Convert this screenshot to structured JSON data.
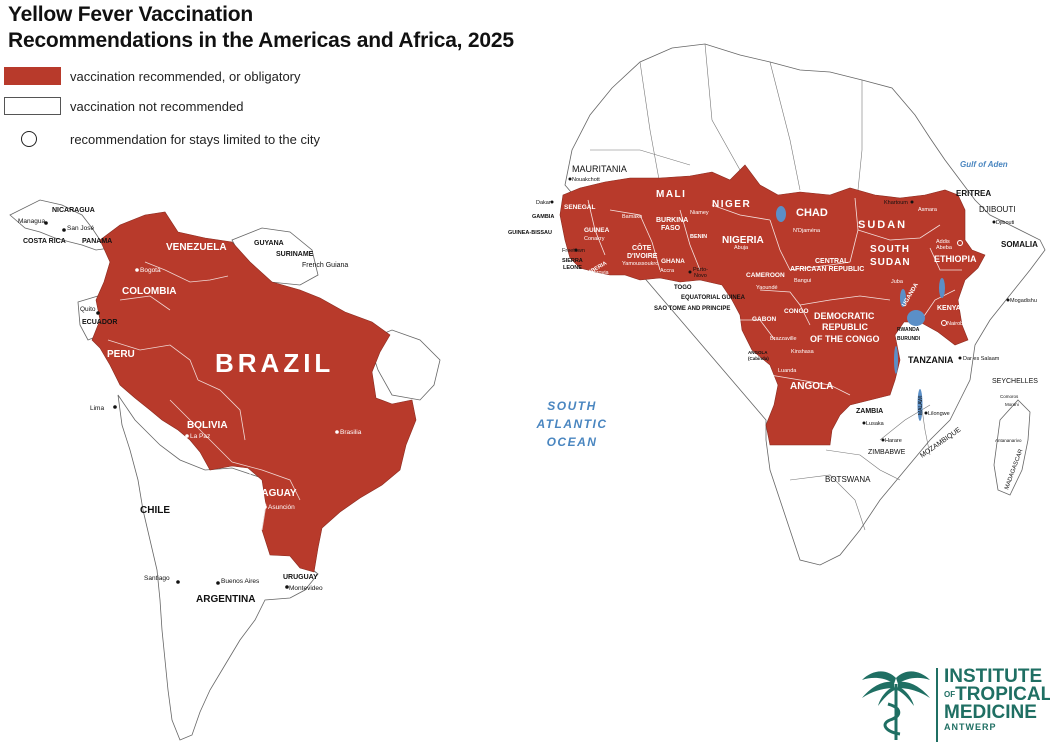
{
  "title": {
    "line1": "Yellow Fever Vaccination",
    "line2": "Recommendations in the Americas and Africa, 2025"
  },
  "legend": {
    "recommended": {
      "label": "vaccination recommended,  or obligatory",
      "color": "#b83a2b"
    },
    "not_recommended": {
      "label": "vaccination not recommended",
      "color": "#ffffff"
    },
    "city_only": {
      "label": "recommendation for stays limited to the city"
    }
  },
  "colors": {
    "endemic": "#b83a2b",
    "border": "#666666",
    "water": "#5b8fc7",
    "ocean_label": "#4a86c0",
    "logo": "#1f6f63"
  },
  "americas": {
    "countries_large": {
      "brazil": "BRAZIL"
    },
    "countries_red": {
      "venezuela": "VENEZUELA",
      "colombia": "COLOMBIA",
      "peru": "PERU",
      "bolivia": "BOLIVIA",
      "paraguay": "PARAGUAY"
    },
    "countries_other": {
      "nicaragua": "NICARAGUA",
      "costa_rica": "COSTA RICA",
      "panama": "PANAMA",
      "guyana": "GUYANA",
      "suriname": "SURINAME",
      "french_guiana": "French Guiana",
      "ecuador": "ECUADOR",
      "chile": "CHILE",
      "argentina": "ARGENTINA",
      "uruguay": "URUGUAY"
    },
    "cities": {
      "managua": "Managua",
      "san_jose": "San José",
      "bogota": "Bogotá",
      "quito": "Quito",
      "lima": "Lima",
      "la_paz": "La Paz",
      "brasilia": "Brasilia",
      "asuncion": "Asunción",
      "santiago": "Santiago",
      "buenos_aires": "Buenos Aires",
      "montevideo": "Montevideo"
    }
  },
  "africa": {
    "countries_red": {
      "mali": "MALI",
      "niger": "NIGER",
      "chad": "CHAD",
      "sudan": "SUDAN",
      "south_sudan_1": "SOUTH",
      "south_sudan_2": "SUDAN",
      "senegal": "SENEGAL",
      "guinea": "GUINEA",
      "burkina_1": "BURKINA",
      "burkina_2": "FASO",
      "cote_1": "CÔTE",
      "cote_2": "D'IVOIRE",
      "ghana": "GHANA",
      "benin": "BENIN",
      "nigeria": "NIGERIA",
      "car_1": "CENTRAL",
      "car_2": "AFRICAAN REPUBLIC",
      "ethiopia": "ETHIOPIA",
      "cameroon": "CAMEROON",
      "gabon": "GABON",
      "congo": "CONGO",
      "drc_1": "DEMOCRATIC",
      "drc_2": "REPUBLIC",
      "drc_3": "OF THE CONGO",
      "angola": "ANGOLA",
      "kenya": "KENYA",
      "uganda": "UGANDA",
      "liberia": "LIBERIA",
      "togo_small": "TOGO"
    },
    "countries_other": {
      "mauritania": "MAURITANIA",
      "eritrea": "ERITREA",
      "djibouti": "DJIBOUTI",
      "somalia": "SOMALIA",
      "gambia": "GAMBIA",
      "guinea_bissau": "GUINEA-BISSAU",
      "sierra_leone_1": "SIERRA",
      "sierra_leone_2": "LEONE",
      "togo": "TOGO",
      "equatorial_guinea": "EQUATORIAL GUINEA",
      "sao_tome": "SAO TOME AND PRINCIPE",
      "tanzania": "TANZANIA",
      "zambia": "ZAMBIA",
      "zimbabwe": "ZIMBABWE",
      "mozambique": "MOZAMBIQUE",
      "botswana": "BOTSWANA",
      "malawi": "MALAWI",
      "madagascar": "MADAGASCAR",
      "seychelles": "SEYCHELLES",
      "rwanda": "RWANDA",
      "burundi": "BURUNDI",
      "angola_cabinda_1": "ANGOLA",
      "angola_cabinda_2": "(Cabinda)",
      "gulf_of_aden": "Gulf of Aden"
    },
    "cities": {
      "nouakchott": "Nouakchott",
      "dakar": "Dakar",
      "conakry": "Conakry",
      "freetown": "Freetown",
      "monrovia": "Monrovia",
      "bamako": "Bamako",
      "niamey": "Niamey",
      "yamoussoukro": "Yamoussoukro",
      "accra": "Accra",
      "porto_novo_1": "Porto-",
      "porto_novo_2": "Novo",
      "abuja": "Abuja",
      "ndjamena": "N'Djaména",
      "khartoum": "Khartoum",
      "asmara": "Asmara",
      "djibouti_city": "Djibouti",
      "addis_1": "Addis",
      "addis_2": "Abeba",
      "juba": "Juba",
      "bangui": "Bangui",
      "yaounde": "Yaoundé",
      "brazzaville": "Brazzaville",
      "kinshasa": "Kinshasa",
      "luanda": "Luanda",
      "nairobi": "Nairobi",
      "mogadishu": "Mogadishu",
      "dar": "Dar es Salaam",
      "lusaka": "Lusaka",
      "harare": "Harare",
      "lilongwe": "Lilongwe",
      "comoros": "Comoros",
      "moroni": "Moroni",
      "antananarivo": "Antananarivo"
    }
  },
  "ocean": {
    "line1": "SOUTH",
    "line2": "ATLANTIC",
    "line3": "OCEAN"
  },
  "logo": {
    "line1": "INSTITUTE",
    "line2a": "OF",
    "line2b": "TROPICAL",
    "line3": "MEDICINE",
    "line4": "ANTWERP"
  }
}
